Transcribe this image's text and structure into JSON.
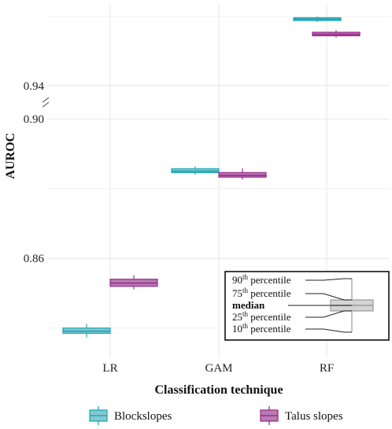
{
  "chart_data": {
    "type": "boxplot",
    "xlabel": "Classification technique",
    "ylabel": "AUROC",
    "categories": [
      "LR",
      "GAM",
      "RF"
    ],
    "axis_break": true,
    "segments": [
      {
        "ylim": [
          0.8325,
          0.9025
        ],
        "ticks": [
          0.86,
          0.9
        ],
        "tick_labels": [
          "0.86",
          "0.90"
        ]
      },
      {
        "ylim": [
          0.937,
          0.962
        ],
        "ticks": [
          0.94
        ],
        "tick_labels": [
          "0.94"
        ]
      }
    ],
    "grid": true,
    "legend_position": "bottom",
    "series": [
      {
        "name": "Blockslopes",
        "color": "#21a7b5",
        "fill": "#86c8cf",
        "boxes": [
          {
            "category": "LR",
            "p10": 0.8373,
            "p25": 0.8385,
            "median": 0.8391,
            "p75": 0.84,
            "p90": 0.8412
          },
          {
            "category": "GAM",
            "p10": 0.884,
            "p25": 0.8846,
            "median": 0.885,
            "p75": 0.8857,
            "p90": 0.8864
          },
          {
            "category": "RF",
            "p10": 0.9584,
            "p25": 0.9588,
            "median": 0.9592,
            "p75": 0.9596,
            "p90": 0.96
          }
        ]
      },
      {
        "name": "Talus slopes",
        "color": "#9b2f8f",
        "fill": "#b57db0",
        "boxes": [
          {
            "category": "LR",
            "p10": 0.8511,
            "p25": 0.852,
            "median": 0.8529,
            "p75": 0.854,
            "p90": 0.8552
          },
          {
            "category": "GAM",
            "p10": 0.8826,
            "p25": 0.8833,
            "median": 0.8838,
            "p75": 0.8846,
            "p90": 0.8858
          },
          {
            "category": "RF",
            "p10": 0.9539,
            "p25": 0.9544,
            "median": 0.9548,
            "p75": 0.9554,
            "p90": 0.956
          }
        ]
      }
    ],
    "inset": {
      "labels": [
        {
          "base": "90",
          "sup": "th",
          "rest": " percentile"
        },
        {
          "base": "75",
          "sup": "th",
          "rest": " percentile"
        },
        {
          "base": "median",
          "sup": "",
          "rest": ""
        },
        {
          "base": "25",
          "sup": "th",
          "rest": " percentile"
        },
        {
          "base": "10",
          "sup": "th",
          "rest": " percentile"
        }
      ]
    }
  }
}
